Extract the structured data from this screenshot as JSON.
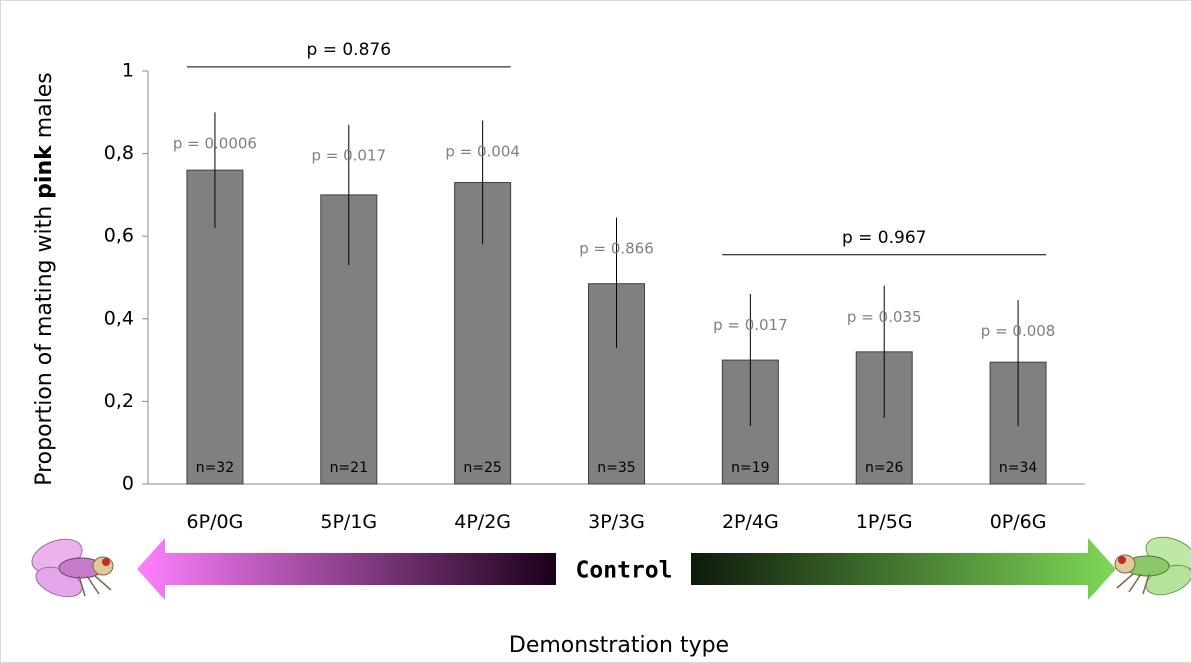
{
  "colors": {
    "bar": "#808080",
    "pink_light": "#ff80ff",
    "pink_dark": "#1a0018",
    "green_dark": "#0d1a0b",
    "green_light": "#7ed957"
  },
  "chart_data": {
    "type": "bar",
    "title": "",
    "xlabel": "Demonstration type",
    "ylabel_prefix": "Proportion of mating with ",
    "ylabel_bold": "pink",
    "ylabel_suffix": " males",
    "ylim": [
      0,
      1
    ],
    "yticks": [
      "0",
      "0,2",
      "0,4",
      "0,6",
      "0,8",
      "1"
    ],
    "ytick_values": [
      0,
      0.2,
      0.4,
      0.6,
      0.8,
      1
    ],
    "grid": false,
    "categories": [
      "6P/0G",
      "5P/1G",
      "4P/2G",
      "3P/3G",
      "2P/4G",
      "1P/5G",
      "0P/6G"
    ],
    "values": [
      0.76,
      0.7,
      0.73,
      0.485,
      0.3,
      0.32,
      0.295
    ],
    "error_low": [
      0.62,
      0.53,
      0.58,
      0.33,
      0.14,
      0.16,
      0.14
    ],
    "error_high": [
      0.9,
      0.87,
      0.88,
      0.645,
      0.46,
      0.48,
      0.445
    ],
    "p_labels": [
      "p = 0.0006",
      "p = 0.017",
      "p = 0.004",
      "p = 0.866",
      "p = 0.017",
      "p = 0.035",
      "p = 0.008"
    ],
    "n_labels": [
      "n=32",
      "n=21",
      "n=25",
      "n=35",
      "n=19",
      "n=26",
      "n=34"
    ],
    "brackets": [
      {
        "label": "p = 0.876",
        "from": 0,
        "to": 2,
        "y": 1.01
      },
      {
        "label": "p = 0.967",
        "from": 4,
        "to": 6,
        "y": 0.555
      }
    ],
    "arrow_label": "Control"
  }
}
